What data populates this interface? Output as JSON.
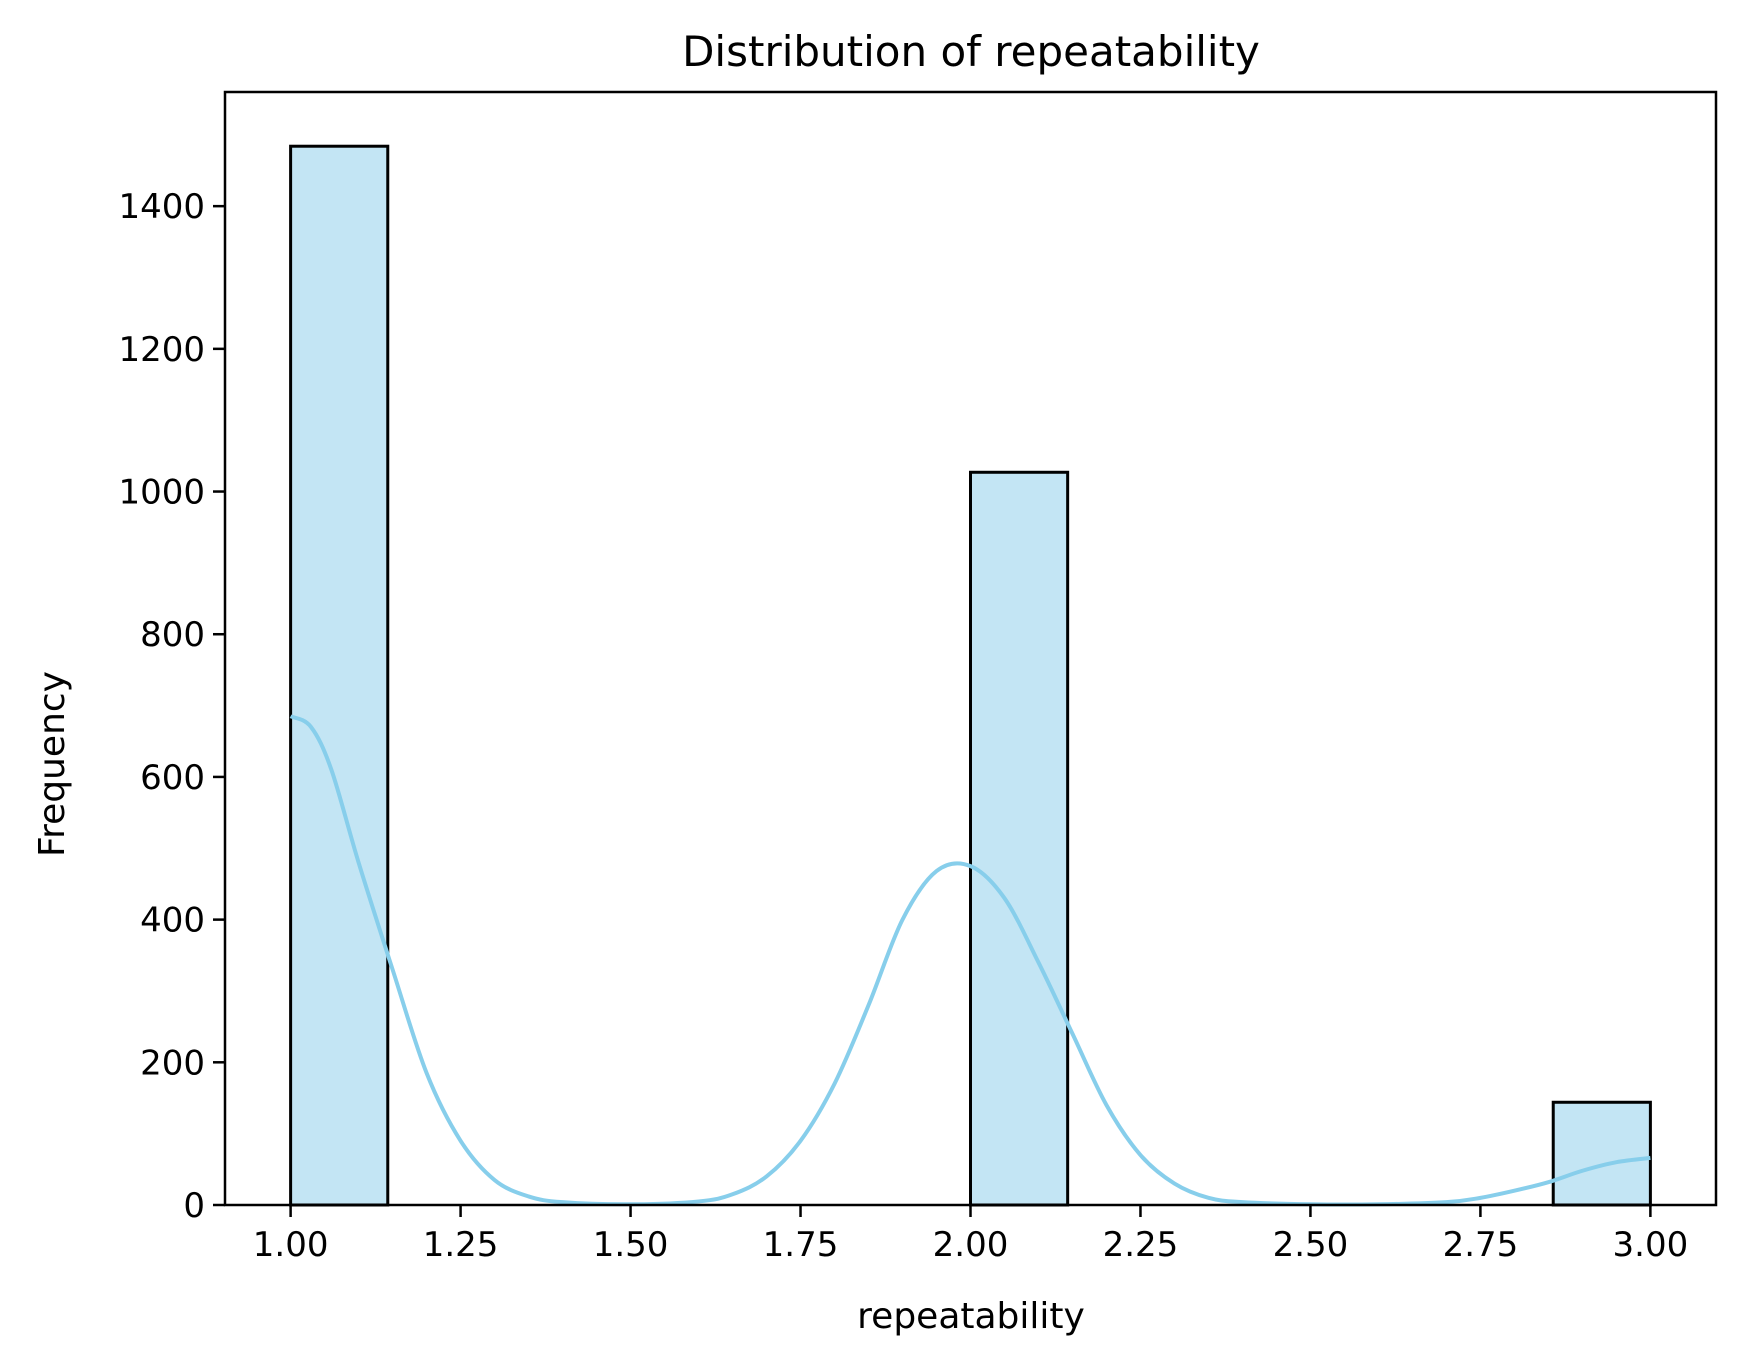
{
  "chart_data": {
    "type": "bar",
    "title": "Distribution of repeatability",
    "xlabel": "repeatability",
    "ylabel": "Frequency",
    "xlim": [
      0.9035,
      3.0965
    ],
    "ylim": [
      0,
      1560
    ],
    "x_ticks": [
      1.0,
      1.25,
      1.5,
      1.75,
      2.0,
      2.25,
      2.5,
      2.75,
      3.0
    ],
    "x_tick_labels": [
      "1.00",
      "1.25",
      "1.50",
      "1.75",
      "2.00",
      "2.25",
      "2.50",
      "2.75",
      "3.00"
    ],
    "y_ticks": [
      0,
      200,
      400,
      600,
      800,
      1000,
      1200,
      1400
    ],
    "y_tick_labels": [
      "0",
      "200",
      "400",
      "600",
      "800",
      "1000",
      "1200",
      "1400"
    ],
    "bins": [
      {
        "x0": 1.0,
        "x1": 1.1429,
        "count": 1484
      },
      {
        "x0": 2.0,
        "x1": 2.1429,
        "count": 1027
      },
      {
        "x0": 2.8571,
        "x1": 3.0,
        "count": 144
      }
    ],
    "bar_fill": "#c3e5f4",
    "bar_edge": "#000000",
    "kde": {
      "color": "#87ceeb",
      "x": [
        1.0,
        1.03,
        1.06,
        1.1,
        1.15,
        1.2,
        1.25,
        1.3,
        1.35,
        1.4,
        1.5,
        1.6,
        1.65,
        1.7,
        1.75,
        1.8,
        1.85,
        1.9,
        1.95,
        2.0,
        2.05,
        2.1,
        2.15,
        2.2,
        2.25,
        2.3,
        2.35,
        2.4,
        2.5,
        2.6,
        2.7,
        2.75,
        2.8,
        2.85,
        2.9,
        2.95,
        3.0
      ],
      "y": [
        685,
        670,
        610,
        480,
        330,
        185,
        90,
        35,
        12,
        4,
        1,
        5,
        15,
        40,
        90,
        170,
        280,
        400,
        468,
        475,
        430,
        340,
        240,
        140,
        70,
        30,
        10,
        4,
        1,
        1,
        4,
        10,
        20,
        32,
        48,
        60,
        66
      ]
    }
  }
}
